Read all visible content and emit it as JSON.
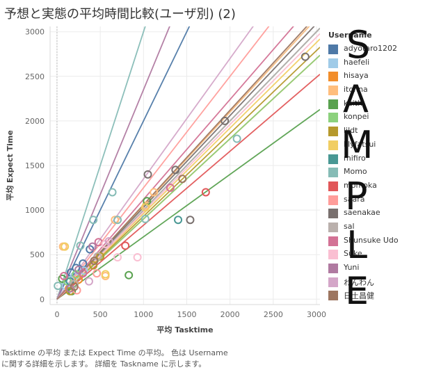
{
  "title": "予想と実態の平均時間比較(ユーザ別) (2)",
  "caption": {
    "line1": "Tasktime の平均 または Expect Time の平均。 色は Username",
    "line2": "に関する詳細を示します。 詳細を Taskname に示します。"
  },
  "watermark": [
    "S",
    "A",
    "M",
    "P",
    "L",
    "E"
  ],
  "legend_title": "Username",
  "chart_data": {
    "type": "scatter",
    "title": "予想と実態の平均時間比較(ユーザ別) (2)",
    "xlabel": "平均 Tasktime",
    "ylabel": "平均 Expect Time",
    "xlim": [
      -80,
      3040
    ],
    "ylim": [
      -60,
      3060
    ],
    "xticks": [
      0,
      500,
      1000,
      1500,
      2000,
      2500,
      3000
    ],
    "yticks": [
      0,
      500,
      1000,
      1500,
      2000,
      2500,
      3000
    ],
    "grid": true,
    "legend_position": "right",
    "marker": "open-circle",
    "series": [
      {
        "name": "adyotaro1202",
        "color": "#4e79a7",
        "slope": 2.0,
        "points": [
          [
            160,
            300
          ],
          [
            220,
            350
          ],
          [
            300,
            400
          ],
          [
            380,
            560
          ]
        ]
      },
      {
        "name": "haefeli",
        "color": "#a0cbe8",
        "slope": 1.05,
        "points": [
          [
            100,
            150
          ],
          [
            200,
            260
          ],
          [
            310,
            320
          ]
        ]
      },
      {
        "name": "hisaya",
        "color": "#f28e2b",
        "slope": 0.9,
        "points": [
          [
            140,
            120
          ],
          [
            250,
            220
          ]
        ]
      },
      {
        "name": "itohna",
        "color": "#ffbe7d",
        "slope": 1.05,
        "points": [
          [
            70,
            590
          ],
          [
            90,
            590
          ],
          [
            560,
            260
          ],
          [
            1030,
            1050
          ],
          [
            1120,
            1200
          ],
          [
            670,
            890
          ]
        ]
      },
      {
        "name": "keith",
        "color": "#59a14f",
        "slope": 0.7,
        "points": [
          [
            60,
            230
          ],
          [
            170,
            90
          ],
          [
            830,
            270
          ],
          [
            1040,
            1100
          ]
        ]
      },
      {
        "name": "konpei",
        "color": "#8cd17d",
        "slope": 0.9,
        "points": [
          [
            120,
            200
          ],
          [
            220,
            280
          ]
        ]
      },
      {
        "name": "lildt",
        "color": "#b6992d",
        "slope": 0.93,
        "points": [
          [
            150,
            90
          ],
          [
            420,
            380
          ],
          [
            500,
            480
          ]
        ]
      },
      {
        "name": "lilyfatsui",
        "color": "#f1ce63",
        "slope": 0.96,
        "points": [
          [
            90,
            590
          ],
          [
            560,
            280
          ],
          [
            1020,
            1030
          ]
        ]
      },
      {
        "name": "mifiro",
        "color": "#499894",
        "slope": 1.0,
        "points": [
          [
            150,
            200
          ],
          [
            1400,
            890
          ]
        ]
      },
      {
        "name": "Momo",
        "color": "#86bcb6",
        "slope": 3.0,
        "points": [
          [
            10,
            150
          ],
          [
            270,
            600
          ],
          [
            420,
            890
          ],
          [
            640,
            1200
          ],
          [
            1020,
            900
          ],
          [
            2080,
            1800
          ],
          [
            700,
            890
          ]
        ]
      },
      {
        "name": "momoka",
        "color": "#e15759",
        "slope": 0.83,
        "points": [
          [
            790,
            600
          ],
          [
            1720,
            1200
          ]
        ]
      },
      {
        "name": "saara",
        "color": "#ff9d9a",
        "slope": 1.25,
        "points": [
          [
            230,
            100
          ],
          [
            460,
            290
          ]
        ]
      },
      {
        "name": "saenakae",
        "color": "#79706e",
        "slope": 1.03,
        "points": [
          [
            1050,
            1400
          ],
          [
            1370,
            1450
          ],
          [
            1540,
            890
          ],
          [
            1940,
            2000
          ],
          [
            2870,
            2720
          ]
        ]
      },
      {
        "name": "sal",
        "color": "#bab0ac",
        "slope": 1.0,
        "points": [
          [
            200,
            170
          ],
          [
            470,
            480
          ]
        ]
      },
      {
        "name": "Shunsuke Udo",
        "color": "#d37295",
        "slope": 1.12,
        "points": [
          [
            80,
            260
          ],
          [
            300,
            290
          ],
          [
            480,
            640
          ],
          [
            1310,
            1250
          ]
        ]
      },
      {
        "name": "Suke",
        "color": "#fabfd2",
        "slope": 0.98,
        "points": [
          [
            700,
            470
          ],
          [
            930,
            470
          ],
          [
            560,
            620
          ]
        ]
      },
      {
        "name": "Yuni",
        "color": "#b07aa1",
        "slope": 2.35,
        "points": [
          [
            150,
            120
          ],
          [
            250,
            330
          ],
          [
            410,
            590
          ]
        ]
      },
      {
        "name": "わんわん",
        "color": "#d4a6c8",
        "slope": 1.35,
        "points": [
          [
            370,
            200
          ],
          [
            600,
            650
          ]
        ]
      },
      {
        "name": "日土昌健",
        "color": "#9d7660",
        "slope": 1.06,
        "points": [
          [
            200,
            140
          ],
          [
            430,
            430
          ],
          [
            1450,
            1350
          ]
        ]
      }
    ]
  }
}
